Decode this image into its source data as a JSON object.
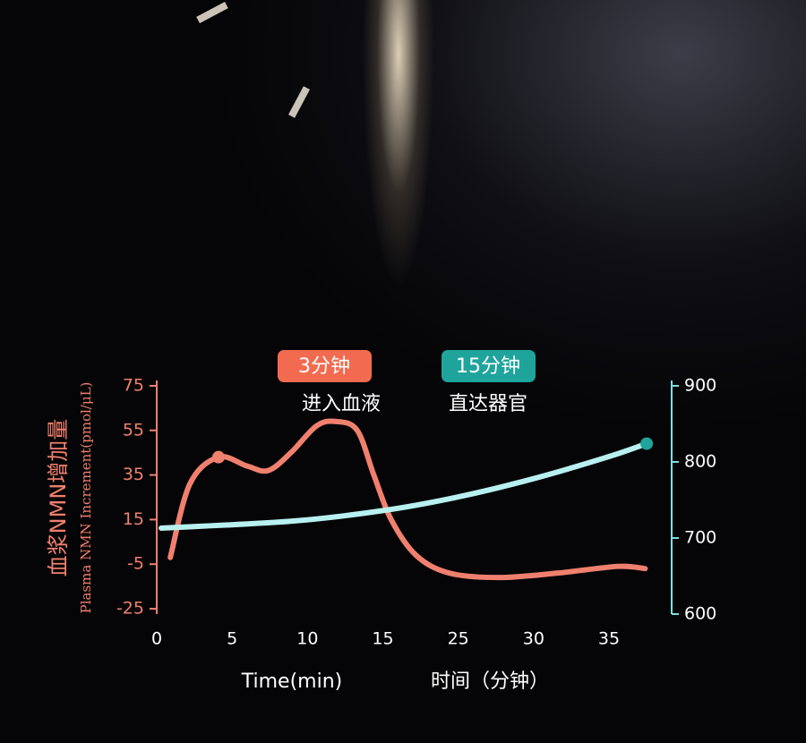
{
  "chart_data": {
    "type": "line",
    "y_label": "血浆NMN增加量",
    "y_label_en": "Plasma NMN Increment(pmol/μL)",
    "x_label": "Time(min)",
    "x_label_cn": "时间（分钟）",
    "annotations": [
      {
        "tag": "3分钟",
        "text": "进入血液"
      },
      {
        "tag": "15分钟",
        "text": "直达器官"
      }
    ],
    "xticks": [
      0,
      5,
      10,
      15,
      25,
      30,
      35
    ],
    "ylim": [
      -25,
      75
    ],
    "yticks": [
      -25,
      -5,
      15,
      35,
      55,
      75
    ],
    "y2lim": [
      600,
      900
    ],
    "y2ticks": [
      600,
      700,
      800,
      900
    ],
    "series": [
      {
        "color": "#f0806e",
        "axis": "y",
        "x": [
          0.9,
          2.2,
          4.1,
          6.0,
          7.4,
          8.9,
          10.6,
          11.9,
          13.3,
          14.4,
          16.1,
          19.4,
          23.8,
          27.7,
          31.6,
          35.6,
          37.4
        ],
        "values": [
          -2,
          31,
          43,
          39,
          37,
          45,
          57,
          59,
          55,
          35,
          15,
          -1,
          -9,
          -11,
          -9,
          -6,
          -7
        ],
        "marker_x": 4.1,
        "marker_value": 43
      },
      {
        "color": "#b8f0f0",
        "axis": "y2",
        "x": [
          0.3,
          8.9,
          15,
          25,
          30,
          35,
          37.5
        ],
        "values": [
          713,
          722,
          736,
          754,
          778,
          807,
          824
        ],
        "marker_x": 37.5,
        "marker_value": 824,
        "marker_color": "#1fa49c"
      }
    ]
  }
}
